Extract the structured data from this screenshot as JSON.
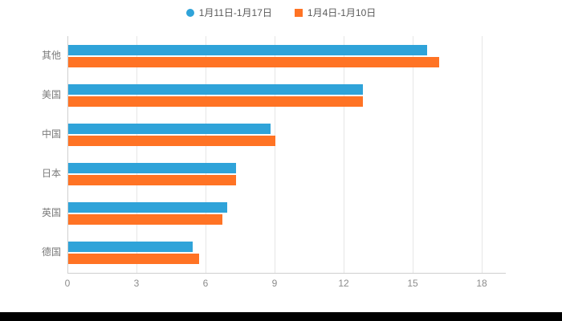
{
  "colors": {
    "blue": "#2fa3d9",
    "orange": "#ff7324",
    "grid": "#e6e6e6",
    "axis": "#cfcfcf",
    "label_text": "#7a7a7a",
    "tick_text": "#8c8c8c",
    "legend_text": "#595959",
    "background": "#ffffff",
    "bottom_strip": "#000000"
  },
  "chart_data": {
    "type": "bar",
    "orientation": "horizontal",
    "title": "",
    "xlabel": "",
    "ylabel": "",
    "categories": [
      "其他",
      "美国",
      "中国",
      "日本",
      "英国",
      "德国"
    ],
    "series": [
      {
        "name": "1月11日-1月17日",
        "color_key": "blue",
        "marker": "circle",
        "values": [
          15.6,
          12.8,
          8.8,
          7.3,
          6.9,
          5.4
        ]
      },
      {
        "name": "1月4日-1月10日",
        "color_key": "orange",
        "marker": "square",
        "values": [
          16.1,
          12.8,
          9.0,
          7.3,
          6.7,
          5.7
        ]
      }
    ],
    "xlim": [
      0,
      18
    ],
    "xticks": [
      0,
      3,
      6,
      9,
      12,
      15,
      18
    ],
    "grid": "vertical",
    "legend_position": "top-center"
  },
  "layout_note": ""
}
